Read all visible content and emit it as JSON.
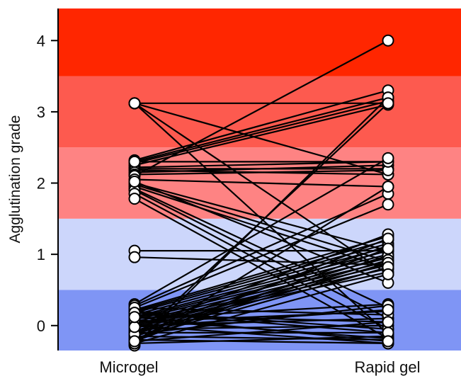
{
  "chart_data": {
    "type": "paired-dot",
    "categories": [
      "Microgel",
      "Rapid gel"
    ],
    "ylabel": "Agglutination grade",
    "xlabel": "",
    "ylim": [
      -0.35,
      4.45
    ],
    "yticks": [
      0,
      1,
      2,
      3,
      4
    ],
    "bands": [
      {
        "from": -0.5,
        "to": 0.5,
        "color": "#7f95f5"
      },
      {
        "from": 0.5,
        "to": 1.5,
        "color": "#ccd6fb"
      },
      {
        "from": 1.5,
        "to": 2.5,
        "color": "#fe8383"
      },
      {
        "from": 2.5,
        "to": 3.5,
        "color": "#fd5a4f"
      },
      {
        "from": 3.5,
        "to": 4.5,
        "color": "#ff2600"
      }
    ],
    "pairs": [
      [
        3.12,
        3.12
      ],
      [
        3.12,
        2.12
      ],
      [
        3.12,
        0.72
      ],
      [
        3.12,
        -0.12
      ],
      [
        2.32,
        3.3
      ],
      [
        2.3,
        3.2
      ],
      [
        2.28,
        3.15
      ],
      [
        2.25,
        3.1
      ],
      [
        2.22,
        2.3
      ],
      [
        2.2,
        2.2
      ],
      [
        2.18,
        2.12
      ],
      [
        2.15,
        2.25
      ],
      [
        2.12,
        2.18
      ],
      [
        2.3,
        2.3
      ],
      [
        2.1,
        4.0
      ],
      [
        2.05,
        1.95
      ],
      [
        2.0,
        1.05
      ],
      [
        1.98,
        0.9
      ],
      [
        1.95,
        0.8
      ],
      [
        1.92,
        0.25
      ],
      [
        1.9,
        0.1
      ],
      [
        1.85,
        -0.05
      ],
      [
        1.78,
        -0.18
      ],
      [
        2.02,
        0.6
      ],
      [
        1.05,
        1.05
      ],
      [
        0.96,
        0.85
      ],
      [
        0.3,
        2.35
      ],
      [
        0.28,
        1.85
      ],
      [
        0.25,
        1.7
      ],
      [
        0.22,
        1.25
      ],
      [
        0.2,
        1.2
      ],
      [
        0.18,
        1.15
      ],
      [
        0.15,
        1.1
      ],
      [
        0.12,
        1.05
      ],
      [
        0.1,
        1.0
      ],
      [
        0.08,
        0.95
      ],
      [
        0.05,
        0.9
      ],
      [
        0.02,
        0.85
      ],
      [
        0.0,
        0.8
      ],
      [
        -0.02,
        0.75
      ],
      [
        -0.05,
        1.28
      ],
      [
        -0.08,
        1.12
      ],
      [
        -0.1,
        0.98
      ],
      [
        -0.12,
        0.92
      ],
      [
        -0.15,
        0.88
      ],
      [
        -0.18,
        0.82
      ],
      [
        -0.2,
        1.22
      ],
      [
        -0.22,
        1.08
      ],
      [
        -0.25,
        0.72
      ],
      [
        -0.28,
        3.2
      ],
      [
        -0.25,
        1.95
      ],
      [
        -0.2,
        3.12
      ],
      [
        0.1,
        0.3
      ],
      [
        0.05,
        0.2
      ],
      [
        0.0,
        0.1
      ],
      [
        -0.05,
        0.0
      ],
      [
        -0.1,
        -0.1
      ],
      [
        -0.15,
        -0.2
      ],
      [
        -0.2,
        -0.25
      ],
      [
        -0.25,
        -0.15
      ],
      [
        0.15,
        0.05
      ],
      [
        0.2,
        -0.05
      ],
      [
        0.0,
        -0.25
      ],
      [
        -0.12,
        0.28
      ],
      [
        0.08,
        -0.18
      ],
      [
        0.25,
        0.15
      ],
      [
        0.18,
        -0.1
      ],
      [
        -0.22,
        0.05
      ],
      [
        -0.02,
        0.22
      ],
      [
        0.12,
        -0.22
      ]
    ]
  }
}
